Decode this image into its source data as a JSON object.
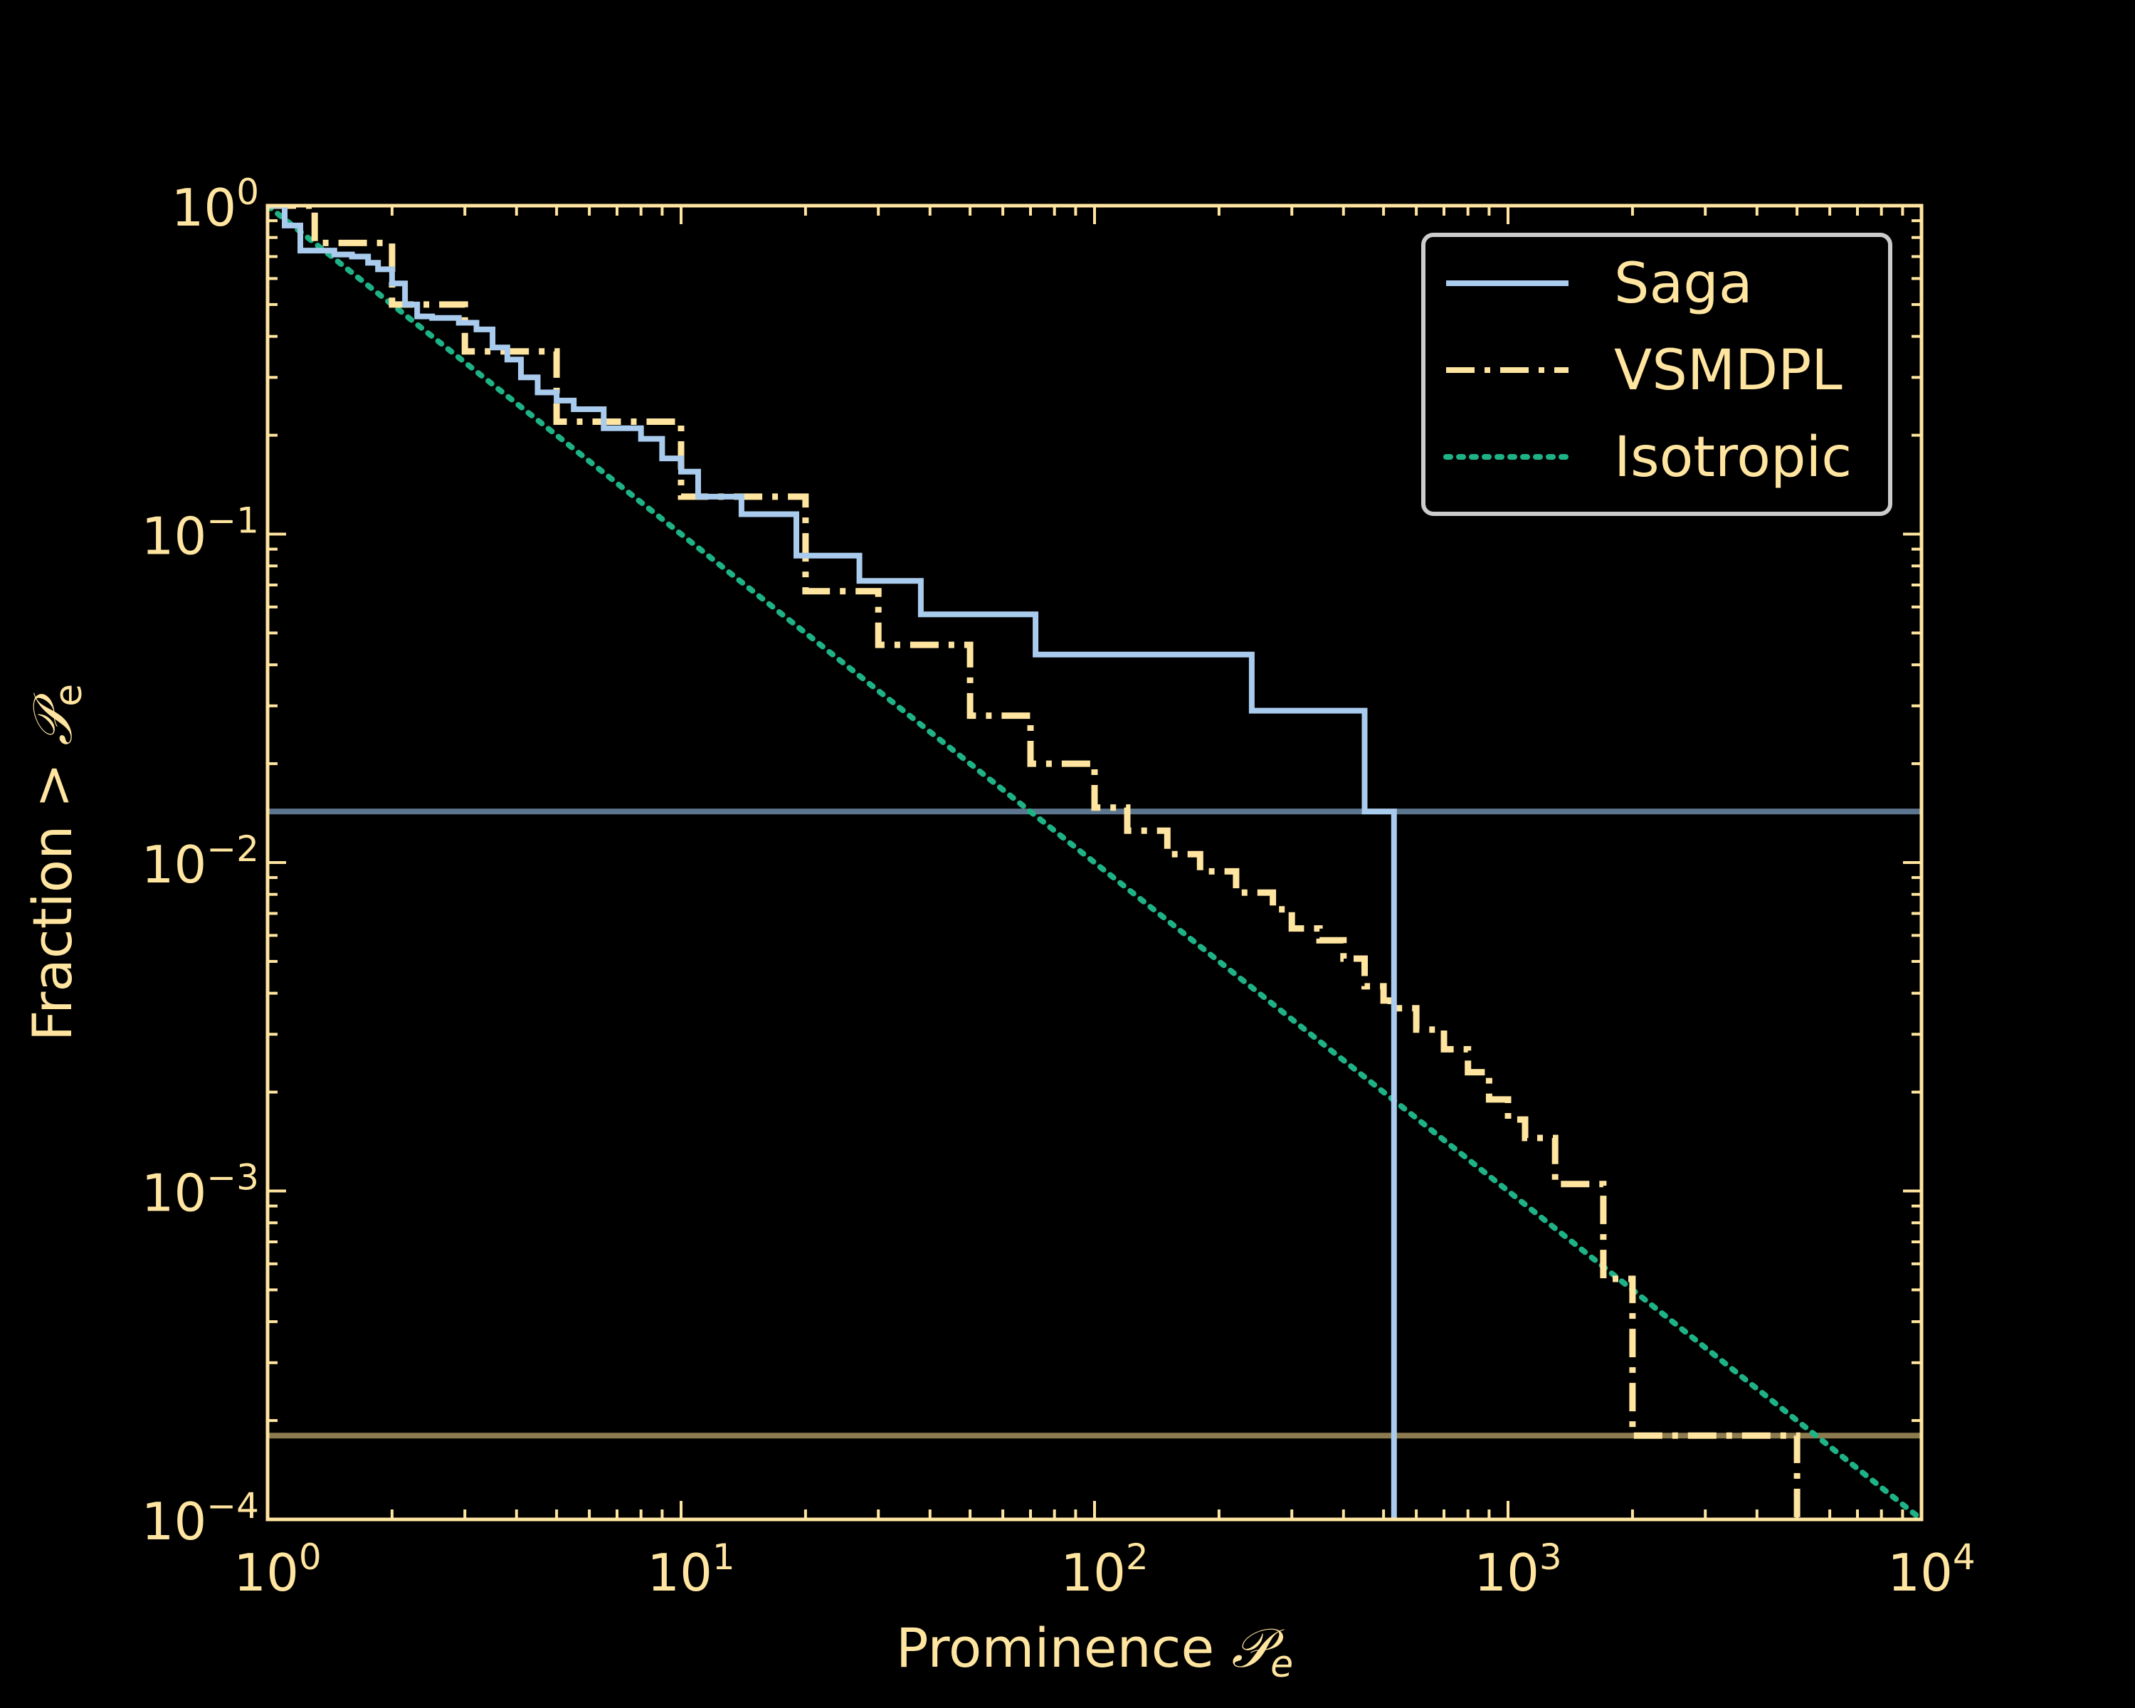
{
  "colors": {
    "background": "#000000",
    "axes": "#ffe5a0",
    "text": "#ffe5a0",
    "saga": "#a9cbee",
    "vsmdpl": "#ffe5a0",
    "isotropic": "#1fb287",
    "saga_hline": "#5d768f",
    "vsmdpl_hline": "#8c7b4f",
    "legend_edge": "#cccccc"
  },
  "chart_data": {
    "type": "line",
    "xlabel": {
      "main": "Prominence ",
      "symbol": "𝒫",
      "sub": "e"
    },
    "ylabel": {
      "main": "Fraction > ",
      "symbol": "𝒫",
      "sub": "e"
    },
    "x_scale": "log",
    "y_scale": "log",
    "xlim": [
      1,
      10000
    ],
    "ylim": [
      0.0001,
      1
    ],
    "x_ticks": [
      {
        "value": 1,
        "base": "10",
        "exp": "0"
      },
      {
        "value": 10,
        "base": "10",
        "exp": "1"
      },
      {
        "value": 100,
        "base": "10",
        "exp": "2"
      },
      {
        "value": 1000,
        "base": "10",
        "exp": "3"
      },
      {
        "value": 10000,
        "base": "10",
        "exp": "4"
      }
    ],
    "y_ticks": [
      {
        "value": 1,
        "base": "10",
        "exp": "0"
      },
      {
        "value": 0.1,
        "base": "10",
        "exp": "−1"
      },
      {
        "value": 0.01,
        "base": "10",
        "exp": "−2"
      },
      {
        "value": 0.001,
        "base": "10",
        "exp": "−3"
      },
      {
        "value": 0.0001,
        "base": "10",
        "exp": "−4"
      }
    ],
    "grid": false,
    "legend_position": "top-right",
    "legend": [
      {
        "label": "Saga",
        "style": "solid",
        "series": "saga"
      },
      {
        "label": "VSMDPL",
        "style": "dashdot",
        "series": "vsmdpl"
      },
      {
        "label": "Isotropic",
        "style": "dotted",
        "series": "isotropic"
      }
    ],
    "series": [
      {
        "key": "saga",
        "name": "Saga",
        "style": "solid",
        "step": true,
        "x": [
          1,
          1.1,
          1.2,
          1.45,
          1.6,
          1.75,
          1.85,
          2.0,
          2.15,
          2.3,
          2.5,
          2.9,
          3.2,
          3.5,
          3.8,
          4.1,
          4.5,
          5.0,
          5.5,
          6.5,
          8.0,
          9.0,
          10.0,
          11.0,
          14.0,
          19.0,
          27.0,
          38.0,
          72.0,
          240.0,
          450.0,
          530.0,
          530.0
        ],
        "y": [
          1.0,
          0.87,
          0.73,
          0.71,
          0.7,
          0.67,
          0.64,
          0.58,
          0.5,
          0.46,
          0.455,
          0.44,
          0.42,
          0.37,
          0.34,
          0.3,
          0.27,
          0.255,
          0.24,
          0.21,
          0.195,
          0.17,
          0.155,
          0.13,
          0.115,
          0.086,
          0.072,
          0.057,
          0.043,
          0.029,
          0.0143,
          0.0143,
          0.0001
        ]
      },
      {
        "key": "vsmdpl",
        "name": "VSMDPL",
        "style": "dashdot",
        "step": true,
        "x": [
          1,
          1.3,
          2,
          3,
          5,
          10,
          20,
          30,
          50,
          70,
          100,
          120,
          150,
          180,
          220,
          270,
          300,
          350,
          400,
          450,
          500,
          520,
          600,
          700,
          800,
          900,
          1000,
          1100,
          1300,
          1700,
          2000,
          5000,
          5000
        ],
        "y": [
          1.0,
          0.77,
          0.5,
          0.36,
          0.22,
          0.13,
          0.067,
          0.046,
          0.028,
          0.02,
          0.0147,
          0.0125,
          0.0106,
          0.0094,
          0.0081,
          0.0072,
          0.0063,
          0.0058,
          0.0051,
          0.0042,
          0.0038,
          0.0036,
          0.0031,
          0.0027,
          0.0023,
          0.0019,
          0.00165,
          0.00145,
          0.00105,
          0.00054,
          0.00018,
          0.00018,
          0.0001
        ]
      },
      {
        "key": "isotropic",
        "name": "Isotropic",
        "style": "dotted",
        "step": false,
        "x": [
          1,
          10000
        ],
        "y": [
          1.0,
          0.0001
        ]
      }
    ],
    "hlines": [
      {
        "y": 0.0143,
        "series": "saga"
      },
      {
        "y": 0.00018,
        "series": "vsmdpl"
      }
    ]
  }
}
